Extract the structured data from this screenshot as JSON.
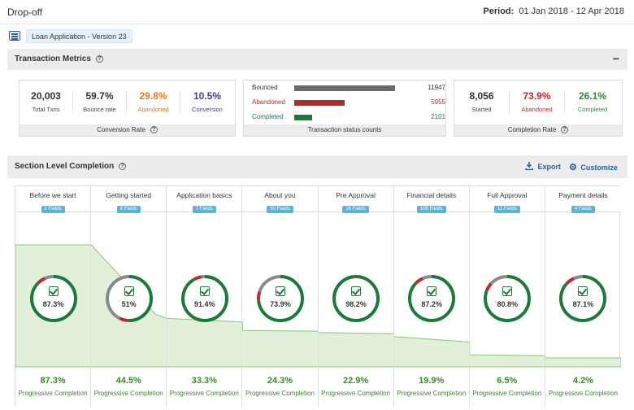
{
  "app": {
    "title": "Drop-off"
  },
  "period": {
    "label": "Period:",
    "value": "01 Jan 2018 - 12 Apr 2018"
  },
  "form_chip": "Loan Application - Version 23",
  "transaction_metrics": {
    "title": "Transaction Metrics",
    "conversion_card": {
      "footer": "Conversion Rate",
      "metrics": [
        {
          "value": "20,003",
          "label": "Total Txns",
          "color": "#333333"
        },
        {
          "value": "59.7%",
          "label": "Bounce rate",
          "color": "#333333"
        },
        {
          "value": "29.8%",
          "label": "Abandoned",
          "color": "#e07b22"
        },
        {
          "value": "10.5%",
          "label": "Conversion",
          "color": "#4a3d82"
        }
      ]
    },
    "status_card": {
      "footer": "Transaction status counts",
      "rows": [
        {
          "label": "Bounced",
          "count": "11947",
          "value": 11947,
          "color": "#6b6b6b"
        },
        {
          "label": "Abandoned",
          "count": "5955",
          "value": 5955,
          "color": "#b22a2a"
        },
        {
          "label": "Completed",
          "count": "2101",
          "value": 2101,
          "color": "#1a7a3a"
        }
      ]
    },
    "completion_card": {
      "footer": "Completion Rate",
      "metrics": [
        {
          "value": "8,056",
          "label": "Started",
          "color": "#333333"
        },
        {
          "value": "73.9%",
          "label": "Abandoned",
          "color": "#c0272d"
        },
        {
          "value": "26.1%",
          "label": "Completed",
          "color": "#2e8b3a"
        }
      ]
    }
  },
  "section_level": {
    "title": "Section Level Completion",
    "export_label": "Export",
    "customize_label": "Customize",
    "sections": [
      {
        "name": "Before we start",
        "fields": "2 Fields",
        "completion": "87.3%",
        "completion_value": 87.3,
        "progressive": "87.3%",
        "progressive_value": 87.3,
        "progressive_label": "Progressive Completion"
      },
      {
        "name": "Getting started",
        "fields": "8 Fields",
        "completion": "51%",
        "completion_value": 51,
        "progressive": "44.5%",
        "progressive_value": 44.5,
        "progressive_label": "Progressive Completion"
      },
      {
        "name": "Application basics",
        "fields": "7 Fields",
        "completion": "91.4%",
        "completion_value": 91.4,
        "progressive": "33.3%",
        "progressive_value": 33.3,
        "progressive_label": "Progressive Completion"
      },
      {
        "name": "About you",
        "fields": "50 Fields",
        "completion": "73.9%",
        "completion_value": 73.9,
        "progressive": "24.3%",
        "progressive_value": 24.3,
        "progressive_label": "Progressive Completion"
      },
      {
        "name": "Pre Approval",
        "fields": "16 Fields",
        "completion": "98.2%",
        "completion_value": 98.2,
        "progressive": "22.9%",
        "progressive_value": 22.9,
        "progressive_label": "Progressive Completion"
      },
      {
        "name": "Financial details",
        "fields": "108 Fields",
        "completion": "87.2%",
        "completion_value": 87.2,
        "progressive": "19.9%",
        "progressive_value": 19.9,
        "progressive_label": "Progressive Completion"
      },
      {
        "name": "Full Approval",
        "fields": "11 Fields",
        "completion": "80.8%",
        "completion_value": 80.8,
        "progressive": "6.5%",
        "progressive_value": 6.5,
        "progressive_label": "Progressive Completion"
      },
      {
        "name": "Payment details",
        "fields": "4 Fields",
        "completion": "87.1%",
        "completion_value": 87.1,
        "progressive": "4.2%",
        "progressive_value": 4.2,
        "progressive_label": "Progressive Completion"
      }
    ]
  },
  "colors": {
    "completed_ring": "#1a7a3a",
    "abandoned_ring": "#c0272d",
    "ring_track": "#8a8a8a",
    "area_fill": "#e2f0da",
    "area_line": "#8cc47a",
    "accent": "#2a5fa6"
  }
}
